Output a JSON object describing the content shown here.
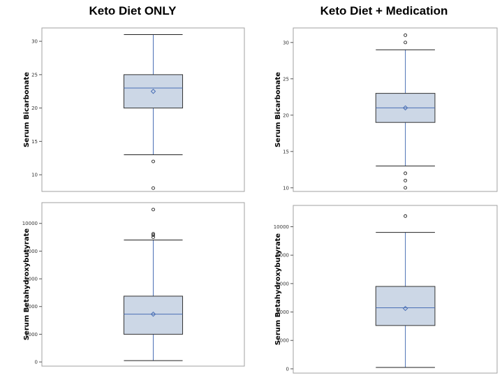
{
  "columns": [
    {
      "title": "Keto Diet ONLY"
    },
    {
      "title": "Keto Diet + Medication"
    }
  ],
  "colors": {
    "box_fill": "#ccd7e6",
    "line_blue": "#4a6fb5",
    "box_outline": "#333333",
    "frame": "#a0a0a0"
  },
  "chart_data": [
    {
      "type": "boxplot",
      "title": "Keto Diet ONLY",
      "ylabel": "Serum Bicarbonate",
      "ylim": [
        7.5,
        32
      ],
      "yticks": [
        10,
        15,
        20,
        25,
        30
      ],
      "ytick_labels": [
        "10",
        "15",
        "20",
        "25",
        "30"
      ],
      "min": 13,
      "q1": 20,
      "median": 23,
      "q3": 25,
      "max": 31,
      "mean": 22.5,
      "outliers": [
        12,
        8
      ]
    },
    {
      "type": "boxplot",
      "title": "Keto Diet + Medication",
      "ylabel": "Serum Bicarbonate",
      "ylim": [
        9.5,
        32
      ],
      "yticks": [
        10,
        15,
        20,
        25,
        30
      ],
      "ytick_labels": [
        "10",
        "15",
        "20",
        "25",
        "30"
      ],
      "min": 13,
      "q1": 19,
      "median": 21,
      "q3": 23,
      "max": 29,
      "mean": 21,
      "outliers": [
        31,
        30,
        12,
        11,
        10
      ]
    },
    {
      "type": "boxplot",
      "title": "Keto Diet ONLY",
      "ylabel": "Serum Betahydroxybutyrate",
      "ylim": [
        -300,
        11500
      ],
      "yticks": [
        0,
        2000,
        4000,
        6000,
        8000,
        10000
      ],
      "ytick_labels": [
        "0",
        "2000",
        "4000",
        "6000",
        "8000",
        "10000"
      ],
      "min": 100,
      "q1": 2000,
      "median": 3450,
      "q3": 4750,
      "max": 8800,
      "mean": 3450,
      "outliers": [
        9000,
        9150,
        9250,
        11000
      ]
    },
    {
      "type": "boxplot",
      "title": "Keto Diet + Medication",
      "ylabel": "Serum Betahydroxybutyrate",
      "ylim": [
        -300,
        11500
      ],
      "yticks": [
        0,
        2000,
        4000,
        6000,
        8000,
        10000
      ],
      "ytick_labels": [
        "0",
        "2000",
        "4000",
        "6000",
        "8000",
        "10000"
      ],
      "min": 100,
      "q1": 3050,
      "median": 4300,
      "q3": 5800,
      "max": 9600,
      "mean": 4250,
      "outliers": [
        10750
      ]
    }
  ]
}
